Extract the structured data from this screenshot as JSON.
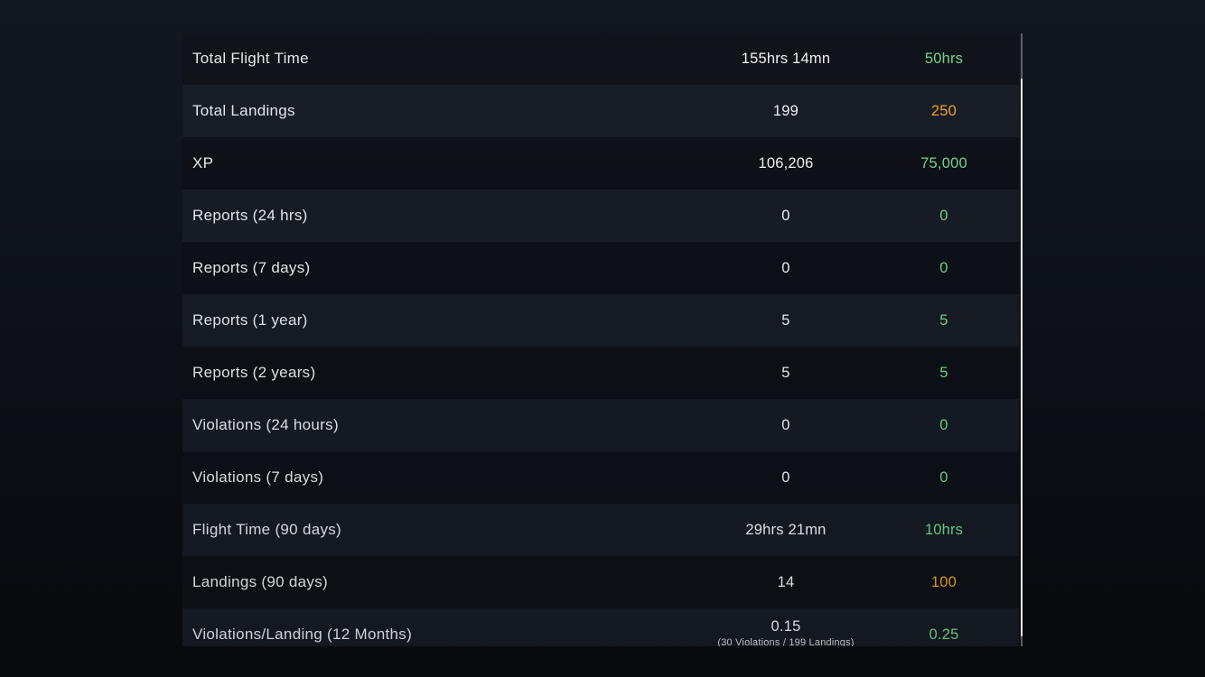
{
  "theme": {
    "colors": {
      "green": "#6fd389",
      "orange": "#f0a01e",
      "value_white": "#eef0f2",
      "label_gray": "#e3e7eb"
    }
  },
  "table": {
    "rows": [
      {
        "label": "Total Flight Time",
        "value": "155hrs 14mn",
        "required": "50hrs",
        "required_color": "green"
      },
      {
        "label": "Total Landings",
        "value": "199",
        "required": "250",
        "required_color": "orange"
      },
      {
        "label": "XP",
        "value": "106,206",
        "required": "75,000",
        "required_color": "green"
      },
      {
        "label": "Reports (24 hrs)",
        "value": "0",
        "required": "0",
        "required_color": "green"
      },
      {
        "label": "Reports (7 days)",
        "value": "0",
        "required": "0",
        "required_color": "green"
      },
      {
        "label": "Reports (1 year)",
        "value": "5",
        "required": "5",
        "required_color": "green"
      },
      {
        "label": "Reports (2 years)",
        "value": "5",
        "required": "5",
        "required_color": "green"
      },
      {
        "label": "Violations (24 hours)",
        "value": "0",
        "required": "0",
        "required_color": "green"
      },
      {
        "label": "Violations (7 days)",
        "value": "0",
        "required": "0",
        "required_color": "green"
      },
      {
        "label": "Flight Time (90 days)",
        "value": "29hrs 21mn",
        "required": "10hrs",
        "required_color": "green"
      },
      {
        "label": "Landings (90 days)",
        "value": "14",
        "required": "100",
        "required_color": "orange"
      },
      {
        "label": "Violations/Landing (12 Months)",
        "value": "0.15",
        "required": "0.25",
        "required_color": "green",
        "sub_value": "(30 Violations / 199 Landings)"
      }
    ]
  }
}
